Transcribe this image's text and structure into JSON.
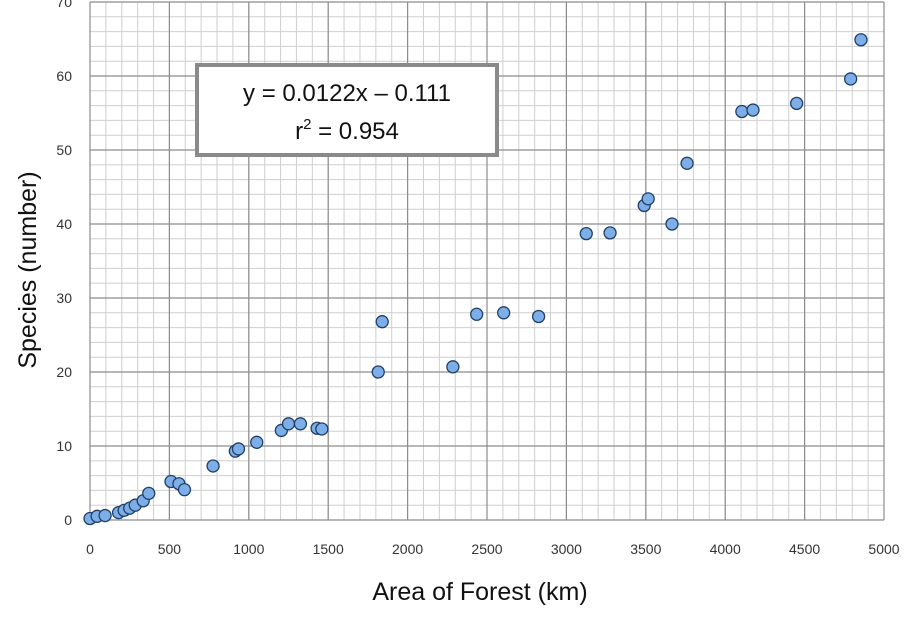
{
  "chart_data": {
    "type": "scatter",
    "xlabel": "Area of Forest (km)",
    "ylabel": "Species (number)",
    "xlim": [
      0,
      5000
    ],
    "ylim": [
      0,
      70
    ],
    "x_ticks": [
      0,
      500,
      1000,
      1500,
      2000,
      2500,
      3000,
      3500,
      4000,
      4500,
      5000
    ],
    "y_ticks": [
      0,
      10,
      20,
      30,
      40,
      50,
      60,
      70
    ],
    "grid": true,
    "minor_grid": true,
    "marker_color": "#7eaee8",
    "marker_edge_color": "#1f3f66",
    "annotation": {
      "equation": "y = 0.0122x – 0.111",
      "r2_prefix": "r",
      "r2_exp": "2",
      "r2_value": " = 0.954"
    },
    "points": [
      {
        "x": 0,
        "y": 0.2
      },
      {
        "x": 45,
        "y": 0.5
      },
      {
        "x": 95,
        "y": 0.6
      },
      {
        "x": 180,
        "y": 1.0
      },
      {
        "x": 215,
        "y": 1.3
      },
      {
        "x": 250,
        "y": 1.6
      },
      {
        "x": 285,
        "y": 2.0
      },
      {
        "x": 335,
        "y": 2.6
      },
      {
        "x": 370,
        "y": 3.6
      },
      {
        "x": 510,
        "y": 5.2
      },
      {
        "x": 560,
        "y": 4.9
      },
      {
        "x": 595,
        "y": 4.1
      },
      {
        "x": 775,
        "y": 7.3
      },
      {
        "x": 915,
        "y": 9.3
      },
      {
        "x": 935,
        "y": 9.6
      },
      {
        "x": 1050,
        "y": 10.5
      },
      {
        "x": 1205,
        "y": 12.1
      },
      {
        "x": 1250,
        "y": 13.0
      },
      {
        "x": 1325,
        "y": 13.0
      },
      {
        "x": 1430,
        "y": 12.4
      },
      {
        "x": 1460,
        "y": 12.3
      },
      {
        "x": 1815,
        "y": 20.0
      },
      {
        "x": 1840,
        "y": 26.8
      },
      {
        "x": 2285,
        "y": 20.7
      },
      {
        "x": 2435,
        "y": 27.8
      },
      {
        "x": 2605,
        "y": 28.0
      },
      {
        "x": 2825,
        "y": 27.5
      },
      {
        "x": 3125,
        "y": 38.7
      },
      {
        "x": 3275,
        "y": 38.8
      },
      {
        "x": 3490,
        "y": 42.5
      },
      {
        "x": 3515,
        "y": 43.4
      },
      {
        "x": 3665,
        "y": 40.0
      },
      {
        "x": 3760,
        "y": 48.2
      },
      {
        "x": 4105,
        "y": 55.2
      },
      {
        "x": 4175,
        "y": 55.4
      },
      {
        "x": 4450,
        "y": 56.3
      },
      {
        "x": 4790,
        "y": 59.6
      },
      {
        "x": 4855,
        "y": 64.9
      }
    ]
  }
}
